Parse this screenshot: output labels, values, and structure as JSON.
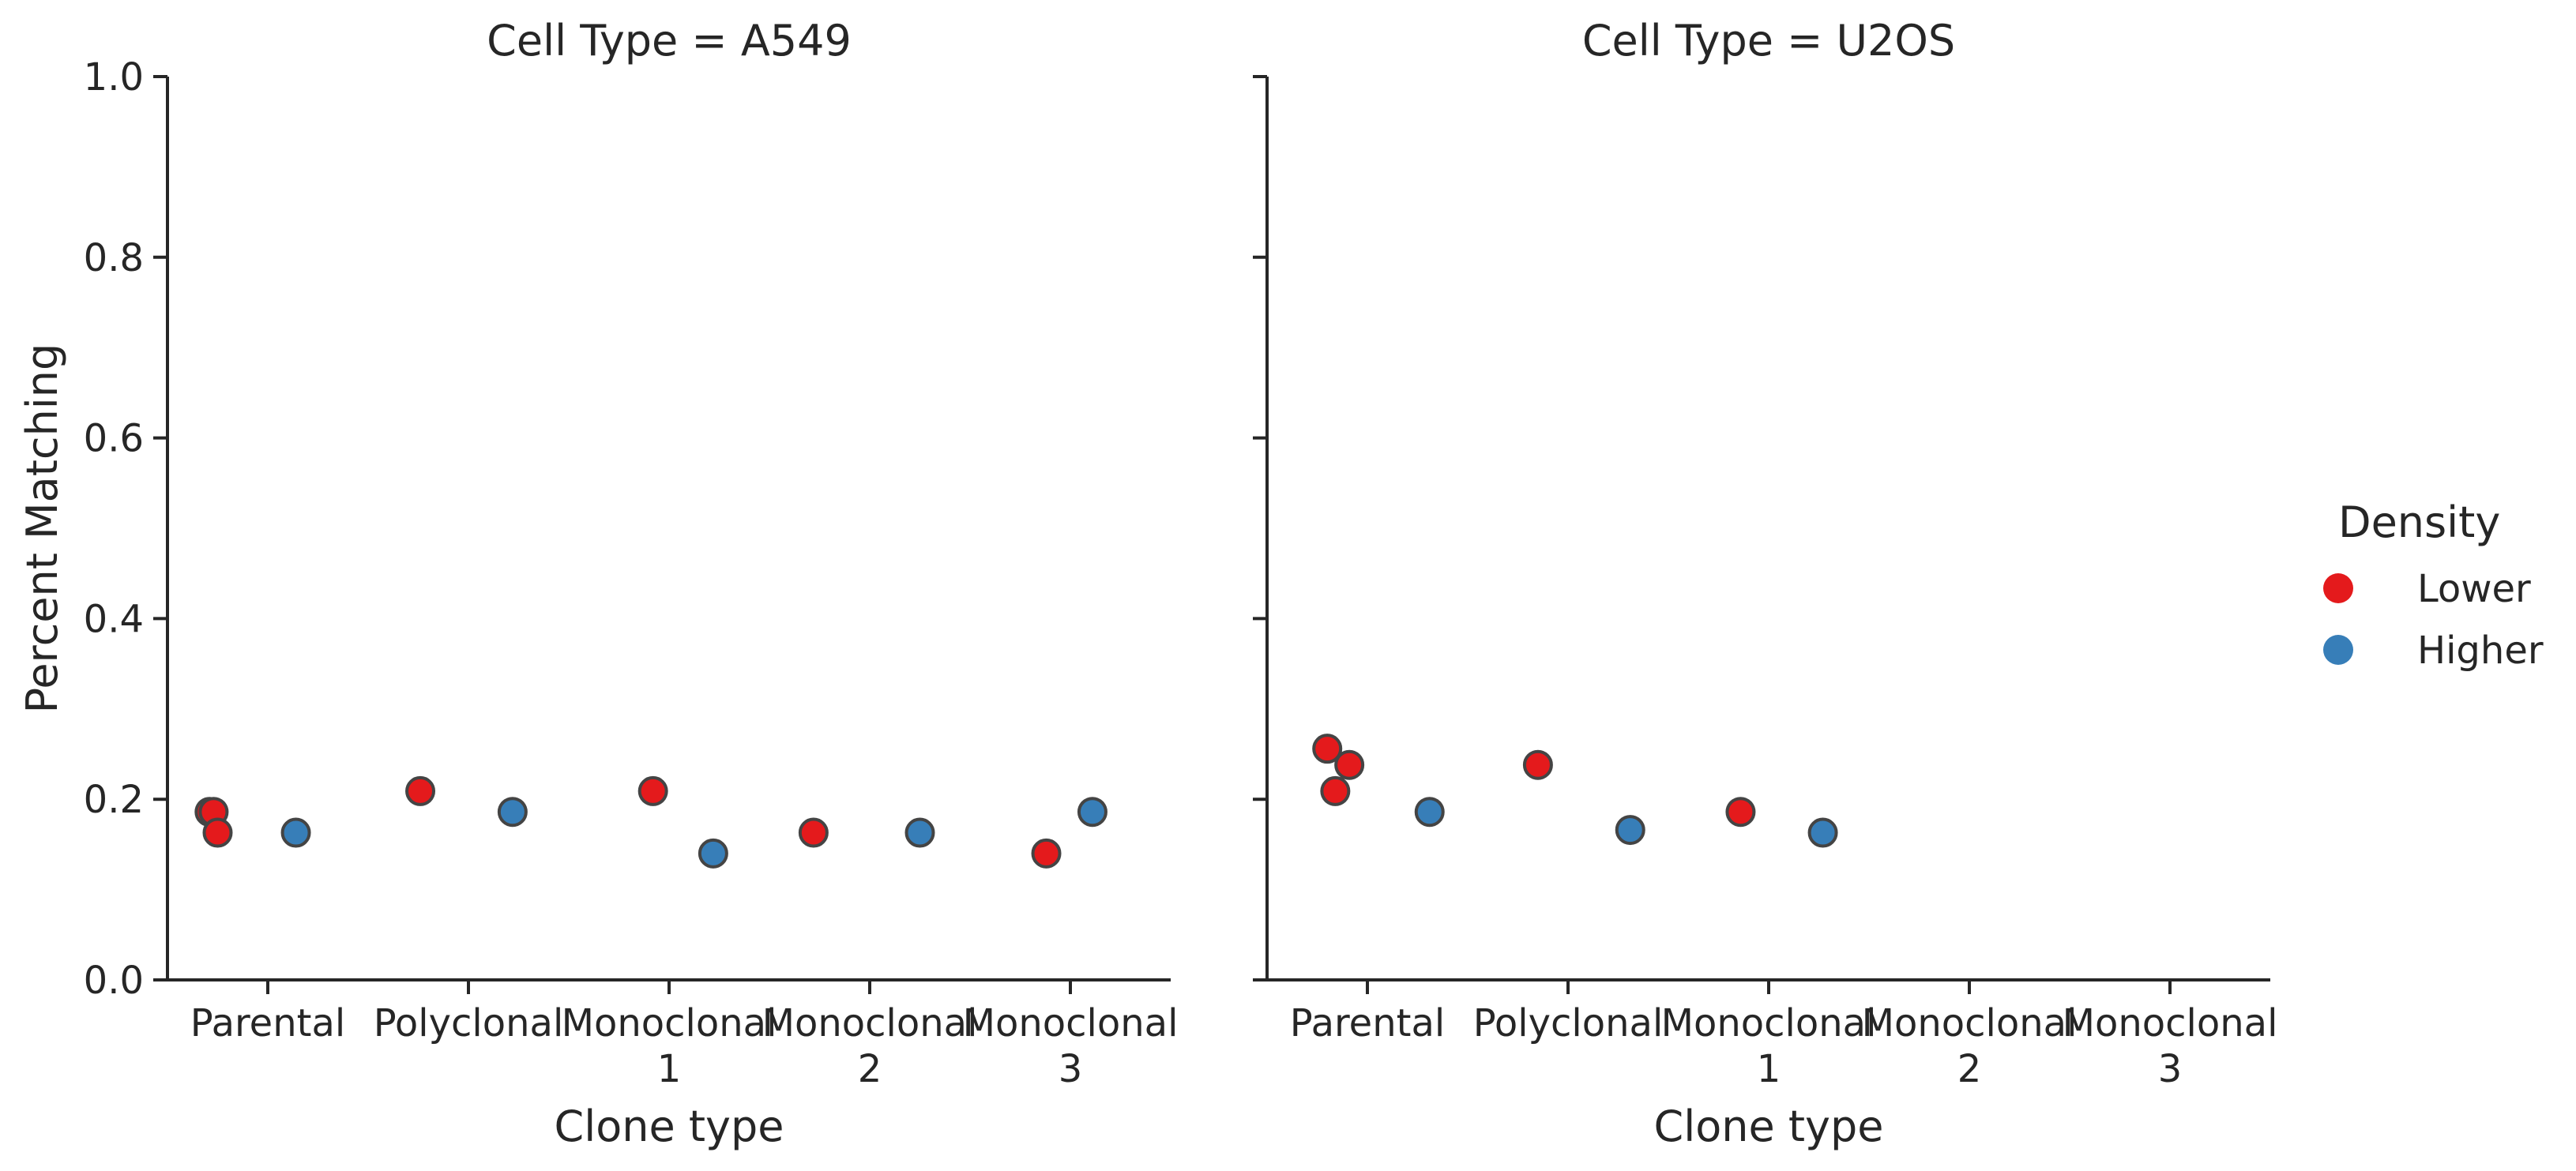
{
  "chart_data": {
    "type": "scatter",
    "subtype": "strip",
    "ylabel": "Percent Matching",
    "ylim": [
      0,
      1
    ],
    "yticks": [
      "0.0",
      "0.2",
      "0.4",
      "0.6",
      "0.8",
      "1.0"
    ],
    "ytick_values": [
      0,
      0.2,
      0.4,
      0.6,
      0.8,
      1.0
    ],
    "categories": [
      {
        "key": "parental",
        "line1": "Parental",
        "line2": ""
      },
      {
        "key": "polyclonal",
        "line1": "Polyclonal",
        "line2": ""
      },
      {
        "key": "mono1",
        "line1": "Monoclonal",
        "line2": "1"
      },
      {
        "key": "mono2",
        "line1": "Monoclonal",
        "line2": "2"
      },
      {
        "key": "mono3",
        "line1": "Monoclonal",
        "line2": "3"
      }
    ],
    "legend": {
      "title": "Density",
      "position": "right",
      "entries": [
        {
          "key": "lower",
          "label": "Lower",
          "color": "#e41a1c"
        },
        {
          "key": "higher",
          "label": "Higher",
          "color": "#377eb8"
        }
      ]
    },
    "panels": [
      {
        "title": "Cell Type = A549",
        "xlabel": "Clone type",
        "points": [
          {
            "category": "parental",
            "density": "lower",
            "y": 0.186,
            "jitter": -0.29
          },
          {
            "category": "parental",
            "density": "lower",
            "y": 0.186,
            "jitter": -0.27
          },
          {
            "category": "parental",
            "density": "lower",
            "y": 0.163,
            "jitter": -0.25
          },
          {
            "category": "parental",
            "density": "higher",
            "y": 0.163,
            "jitter": 0.14
          },
          {
            "category": "polyclonal",
            "density": "lower",
            "y": 0.209,
            "jitter": -0.24
          },
          {
            "category": "polyclonal",
            "density": "higher",
            "y": 0.186,
            "jitter": 0.22
          },
          {
            "category": "mono1",
            "density": "lower",
            "y": 0.209,
            "jitter": -0.08
          },
          {
            "category": "mono1",
            "density": "higher",
            "y": 0.14,
            "jitter": 0.22
          },
          {
            "category": "mono2",
            "density": "lower",
            "y": 0.163,
            "jitter": -0.28
          },
          {
            "category": "mono2",
            "density": "higher",
            "y": 0.163,
            "jitter": 0.25
          },
          {
            "category": "mono3",
            "density": "lower",
            "y": 0.14,
            "jitter": -0.12
          },
          {
            "category": "mono3",
            "density": "higher",
            "y": 0.186,
            "jitter": 0.11
          }
        ]
      },
      {
        "title": "Cell Type = U2OS",
        "xlabel": "Clone type",
        "points": [
          {
            "category": "parental",
            "density": "lower",
            "y": 0.256,
            "jitter": -0.2
          },
          {
            "category": "parental",
            "density": "lower",
            "y": 0.238,
            "jitter": -0.09
          },
          {
            "category": "parental",
            "density": "lower",
            "y": 0.209,
            "jitter": -0.16
          },
          {
            "category": "parental",
            "density": "higher",
            "y": 0.186,
            "jitter": 0.31
          },
          {
            "category": "polyclonal",
            "density": "lower",
            "y": 0.238,
            "jitter": -0.15
          },
          {
            "category": "polyclonal",
            "density": "higher",
            "y": 0.166,
            "jitter": 0.31
          },
          {
            "category": "mono1",
            "density": "lower",
            "y": 0.186,
            "jitter": -0.14
          },
          {
            "category": "mono1",
            "density": "higher",
            "y": 0.163,
            "jitter": 0.27
          }
        ]
      }
    ]
  }
}
